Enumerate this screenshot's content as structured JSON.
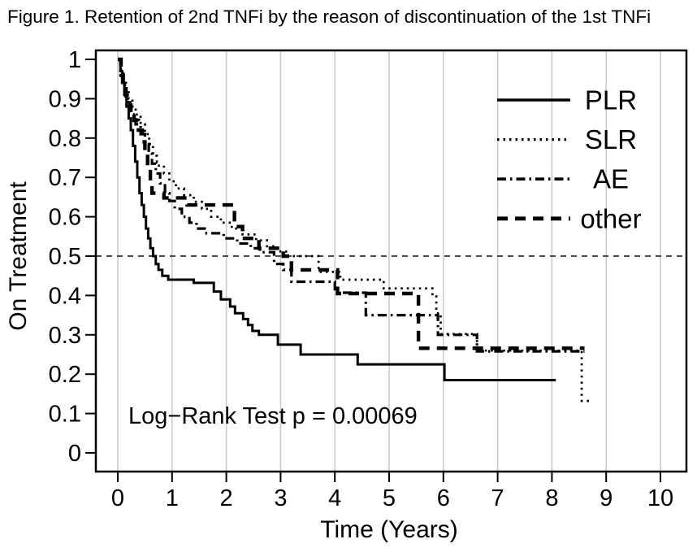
{
  "title": "Figure 1. Retention of 2nd TNFi by the reason of discontinuation of the 1st TNFi",
  "annotation": "Log−Rank Test p = 0.00069",
  "colors": {
    "line": "#000000",
    "grid": "#c9c9c9",
    "reference_line": "#4a4a4a",
    "background": "#ffffff",
    "text": "#000000"
  },
  "chart_data": {
    "type": "line",
    "subtype": "kaplan-meier-step",
    "title": "Figure 1. Retention of 2nd TNFi by the reason of discontinuation of the 1st TNFi",
    "xlabel": "Time (Years)",
    "ylabel": "On Treatment",
    "xlim": [
      0,
      10
    ],
    "ylim": [
      0,
      1
    ],
    "xticks": [
      0,
      1,
      2,
      3,
      4,
      5,
      6,
      7,
      8,
      9,
      10
    ],
    "yticks": [
      0,
      0.1,
      0.2,
      0.3,
      0.4,
      0.5,
      0.6,
      0.7,
      0.8,
      0.9,
      1
    ],
    "grid": "vertical-only-light-gray",
    "reference_line_y": 0.5,
    "annotation": "Log−Rank Test p = 0.00069",
    "legend_position": "top-right",
    "legend": [
      {
        "label": "PLR",
        "style": "solid"
      },
      {
        "label": "SLR",
        "style": "dotted"
      },
      {
        "label": "AE",
        "style": "dashdot"
      },
      {
        "label": "other",
        "style": "dashed"
      }
    ],
    "series": [
      {
        "name": "PLR",
        "style": "solid",
        "end": 8.07,
        "points": [
          [
            0,
            1
          ],
          [
            0.05,
            0.97
          ],
          [
            0.08,
            0.94
          ],
          [
            0.12,
            0.91
          ],
          [
            0.16,
            0.88
          ],
          [
            0.2,
            0.85
          ],
          [
            0.24,
            0.82
          ],
          [
            0.28,
            0.78
          ],
          [
            0.32,
            0.74
          ],
          [
            0.36,
            0.7
          ],
          [
            0.4,
            0.66
          ],
          [
            0.44,
            0.63
          ],
          [
            0.48,
            0.6
          ],
          [
            0.52,
            0.57
          ],
          [
            0.56,
            0.545
          ],
          [
            0.6,
            0.52
          ],
          [
            0.65,
            0.5
          ],
          [
            0.7,
            0.48
          ],
          [
            0.75,
            0.465
          ],
          [
            0.82,
            0.45
          ],
          [
            0.93,
            0.44
          ],
          [
            1.4,
            0.432
          ],
          [
            1.77,
            0.41
          ],
          [
            1.9,
            0.39
          ],
          [
            2.07,
            0.372
          ],
          [
            2.16,
            0.355
          ],
          [
            2.31,
            0.34
          ],
          [
            2.4,
            0.325
          ],
          [
            2.48,
            0.31
          ],
          [
            2.6,
            0.3
          ],
          [
            2.95,
            0.275
          ],
          [
            3.37,
            0.25
          ],
          [
            4.42,
            0.225
          ],
          [
            6.02,
            0.185
          ]
        ]
      },
      {
        "name": "SLR",
        "style": "dotted",
        "end": 8.75,
        "points": [
          [
            0,
            1
          ],
          [
            0.06,
            0.97
          ],
          [
            0.1,
            0.945
          ],
          [
            0.15,
            0.92
          ],
          [
            0.2,
            0.9
          ],
          [
            0.27,
            0.88
          ],
          [
            0.33,
            0.86
          ],
          [
            0.42,
            0.835
          ],
          [
            0.5,
            0.81
          ],
          [
            0.58,
            0.785
          ],
          [
            0.65,
            0.755
          ],
          [
            0.72,
            0.73
          ],
          [
            0.85,
            0.71
          ],
          [
            0.95,
            0.69
          ],
          [
            1.07,
            0.672
          ],
          [
            1.22,
            0.655
          ],
          [
            1.4,
            0.638
          ],
          [
            1.55,
            0.62
          ],
          [
            1.72,
            0.6
          ],
          [
            1.9,
            0.585
          ],
          [
            2.1,
            0.57
          ],
          [
            2.3,
            0.555
          ],
          [
            2.55,
            0.54
          ],
          [
            2.75,
            0.525
          ],
          [
            2.95,
            0.512
          ],
          [
            3.1,
            0.5
          ],
          [
            3.7,
            0.46
          ],
          [
            4.1,
            0.44
          ],
          [
            4.9,
            0.418
          ],
          [
            5.8,
            0.4
          ],
          [
            5.87,
            0.355
          ],
          [
            5.95,
            0.302
          ],
          [
            6.62,
            0.26
          ],
          [
            8.55,
            0.132
          ]
        ]
      },
      {
        "name": "AE",
        "style": "dashdot",
        "end": 8.6,
        "points": [
          [
            0,
            1
          ],
          [
            0.05,
            0.965
          ],
          [
            0.09,
            0.935
          ],
          [
            0.13,
            0.91
          ],
          [
            0.18,
            0.885
          ],
          [
            0.25,
            0.86
          ],
          [
            0.33,
            0.835
          ],
          [
            0.42,
            0.81
          ],
          [
            0.5,
            0.785
          ],
          [
            0.57,
            0.76
          ],
          [
            0.63,
            0.735
          ],
          [
            0.7,
            0.71
          ],
          [
            0.78,
            0.685
          ],
          [
            0.87,
            0.66
          ],
          [
            0.95,
            0.64
          ],
          [
            1.05,
            0.62
          ],
          [
            1.18,
            0.6
          ],
          [
            1.32,
            0.585
          ],
          [
            1.45,
            0.57
          ],
          [
            1.6,
            0.558
          ],
          [
            1.95,
            0.545
          ],
          [
            2.2,
            0.532
          ],
          [
            2.45,
            0.52
          ],
          [
            2.62,
            0.51
          ],
          [
            2.88,
            0.48
          ],
          [
            3.05,
            0.465
          ],
          [
            3.2,
            0.435
          ],
          [
            4,
            0.407
          ],
          [
            4.57,
            0.35
          ],
          [
            5.9,
            0.3
          ],
          [
            6.62,
            0.258
          ]
        ]
      },
      {
        "name": "other",
        "style": "dashed",
        "end": 8.6,
        "points": [
          [
            0,
            1
          ],
          [
            0.06,
            0.96
          ],
          [
            0.1,
            0.93
          ],
          [
            0.15,
            0.9
          ],
          [
            0.22,
            0.87
          ],
          [
            0.3,
            0.845
          ],
          [
            0.38,
            0.82
          ],
          [
            0.45,
            0.79
          ],
          [
            0.5,
            0.76
          ],
          [
            0.55,
            0.72
          ],
          [
            0.6,
            0.68
          ],
          [
            0.63,
            0.66
          ],
          [
            0.85,
            0.648
          ],
          [
            1.28,
            0.63
          ],
          [
            2.15,
            0.575
          ],
          [
            2.3,
            0.545
          ],
          [
            2.6,
            0.52
          ],
          [
            3.05,
            0.5
          ],
          [
            3.2,
            0.465
          ],
          [
            4.05,
            0.405
          ],
          [
            5.54,
            0.266
          ]
        ]
      }
    ]
  }
}
